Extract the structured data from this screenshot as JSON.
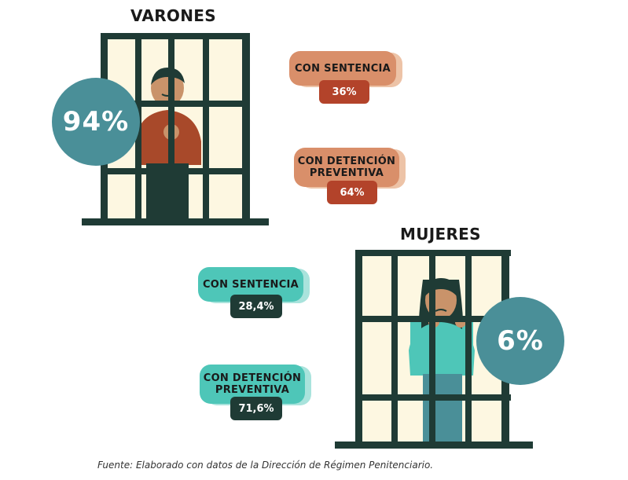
{
  "colors": {
    "bars": "#1f3b35",
    "bg_cell": "#fdf7e1",
    "teal_circle": "#4a8f98",
    "salmon_pill": "#d98f6a",
    "salmon_shadow": "#edc3a7",
    "rust_val": "#b3432a",
    "teal_pill": "#4ec6b8",
    "teal_shadow": "#a9e3dc",
    "dark_val": "#1f3b35"
  },
  "varones": {
    "heading": "VARONES",
    "total": "94%",
    "sentencia_label": "CON SENTENCIA",
    "sentencia_value": "36%",
    "preventiva_label_1": "CON DETENCIÓN",
    "preventiva_label_2": "PREVENTIVA",
    "preventiva_value": "64%"
  },
  "mujeres": {
    "heading": "MUJERES",
    "total": "6%",
    "sentencia_label": "CON SENTENCIA",
    "sentencia_value": "28,4%",
    "preventiva_label_1": "CON DETENCIÓN",
    "preventiva_label_2": "PREVENTIVA",
    "preventiva_value": "71,6%"
  },
  "source": "Fuente: Elaborado con datos de la Dirección de Régimen Penitenciario.",
  "chart_data": {
    "type": "table",
    "groups": [
      {
        "name": "VARONES",
        "share": 94,
        "breakdown": [
          {
            "label": "CON SENTENCIA",
            "value": 36
          },
          {
            "label": "CON DETENCIÓN PREVENTIVA",
            "value": 64
          }
        ]
      },
      {
        "name": "MUJERES",
        "share": 6,
        "breakdown": [
          {
            "label": "CON SENTENCIA",
            "value": 28.4
          },
          {
            "label": "CON DETENCIÓN PREVENTIVA",
            "value": 71.6
          }
        ]
      }
    ],
    "unit": "%"
  }
}
